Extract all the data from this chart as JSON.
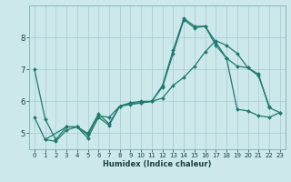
{
  "xlabel": "Humidex (Indice chaleur)",
  "xlim": [
    -0.5,
    23.5
  ],
  "ylim": [
    4.5,
    9.0
  ],
  "background_color": "#cce8ea",
  "grid_color": "#aad0d4",
  "line_color": "#1e7a6e",
  "lines": [
    {
      "x": [
        0,
        1,
        2,
        3,
        4,
        5,
        6,
        7,
        8,
        9,
        10,
        11,
        12,
        13,
        14,
        15,
        16,
        17,
        18,
        19,
        20,
        21,
        22
      ],
      "y": [
        7.0,
        5.45,
        4.8,
        5.2,
        5.2,
        4.85,
        5.5,
        5.25,
        5.85,
        5.95,
        5.95,
        6.0,
        6.45,
        7.5,
        8.55,
        8.3,
        8.35,
        7.85,
        7.35,
        7.1,
        7.05,
        6.8,
        5.85
      ]
    },
    {
      "x": [
        0,
        1,
        2,
        3,
        4,
        5,
        6,
        7,
        8,
        9,
        10,
        11,
        12,
        13,
        14,
        15,
        16,
        17,
        18,
        19,
        20,
        21,
        22,
        23
      ],
      "y": [
        5.5,
        4.8,
        4.75,
        5.1,
        5.2,
        4.95,
        5.55,
        5.5,
        5.85,
        5.9,
        5.95,
        6.0,
        6.1,
        6.5,
        6.75,
        7.1,
        7.55,
        7.9,
        7.75,
        7.5,
        7.05,
        6.85,
        5.8,
        5.65
      ]
    },
    {
      "x": [
        1,
        3,
        4,
        5,
        6,
        7,
        8,
        9,
        10,
        11,
        12,
        13,
        14,
        15,
        16,
        17,
        18,
        19,
        20,
        21,
        22,
        23
      ],
      "y": [
        4.8,
        5.2,
        5.2,
        5.0,
        5.6,
        5.3,
        5.85,
        5.95,
        6.0,
        6.0,
        6.5,
        7.6,
        8.6,
        8.35,
        8.35,
        7.75,
        7.35,
        5.75,
        5.7,
        5.55,
        5.5,
        5.65
      ]
    }
  ],
  "xticks": [
    0,
    1,
    2,
    3,
    4,
    5,
    6,
    7,
    8,
    9,
    10,
    11,
    12,
    13,
    14,
    15,
    16,
    17,
    18,
    19,
    20,
    21,
    22,
    23
  ],
  "yticks": [
    5,
    6,
    7,
    8
  ]
}
